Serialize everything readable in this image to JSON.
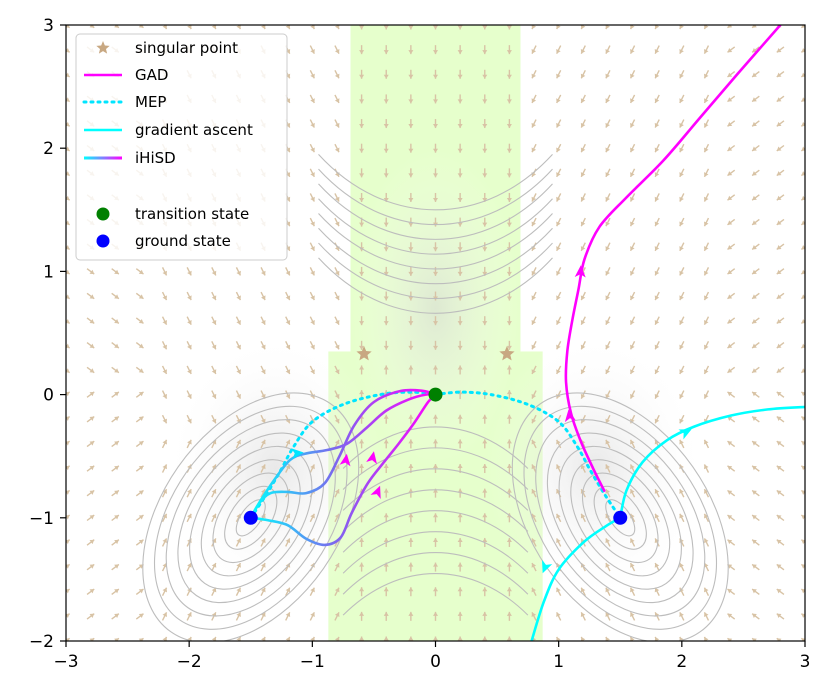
{
  "chart_data": {
    "type": "scatter",
    "xlim": [
      -3,
      3
    ],
    "ylim": [
      -2,
      3
    ],
    "x_ticks": [
      "−3",
      "−2",
      "−1",
      "0",
      "1",
      "2",
      "3"
    ],
    "y_ticks": [
      "−2",
      "−1",
      "0",
      "1",
      "2",
      "3"
    ],
    "grid": false,
    "legend_position": "top-left",
    "legend": [
      {
        "key": "singular",
        "label": "singular point",
        "marker": "star",
        "color": "#c8a882"
      },
      {
        "key": "gad",
        "label": "GAD",
        "marker": "line",
        "color": "#ff00ff"
      },
      {
        "key": "mep",
        "label": "MEP",
        "marker": "dotted-line",
        "color": "#00e5ff"
      },
      {
        "key": "ascent",
        "label": "gradient ascent",
        "marker": "line",
        "color": "#00ffff"
      },
      {
        "key": "ihisd",
        "label": "iHiSD",
        "marker": "gradient-line",
        "color": "#ff00ff"
      },
      {
        "key": "ts",
        "label": "transition state",
        "marker": "dot",
        "color": "#008000"
      },
      {
        "key": "gs",
        "label": "ground state",
        "marker": "dot",
        "color": "#0000ff"
      }
    ],
    "singular_points": [
      [
        -0.58,
        0.33
      ],
      [
        0.58,
        0.33
      ]
    ],
    "transition_state": [
      0,
      0
    ],
    "ground_states": [
      [
        -1.5,
        -1
      ],
      [
        1.5,
        -1
      ]
    ],
    "shaded_bands": [
      {
        "x0": -0.69,
        "x1": 0.69,
        "y0": 0.35,
        "y1": 3,
        "color": "#e6ffcc"
      },
      {
        "x0": -0.87,
        "x1": 0.87,
        "y0": -2,
        "y1": 0.35,
        "color": "#e6ffcc"
      }
    ],
    "series": [
      {
        "key": "mep_left",
        "style": "mep",
        "color": "#00e5ff",
        "points": [
          [
            -1.5,
            -1
          ],
          [
            -1.38,
            -0.82
          ],
          [
            -1.26,
            -0.62
          ],
          [
            -1.15,
            -0.42
          ],
          [
            -1.0,
            -0.22
          ],
          [
            -0.75,
            -0.08
          ],
          [
            -0.45,
            0.0
          ],
          [
            -0.2,
            0.02
          ],
          [
            0,
            0
          ]
        ]
      },
      {
        "key": "mep_right",
        "style": "mep",
        "color": "#00e5ff",
        "points": [
          [
            0,
            0
          ],
          [
            0.2,
            0.02
          ],
          [
            0.45,
            0.0
          ],
          [
            0.75,
            -0.08
          ],
          [
            1.0,
            -0.22
          ],
          [
            1.15,
            -0.42
          ],
          [
            1.26,
            -0.62
          ],
          [
            1.38,
            -0.82
          ],
          [
            1.5,
            -1
          ]
        ]
      },
      {
        "key": "gad_right",
        "style": "line",
        "color": "#ff00ff",
        "points": [
          [
            1.37,
            -0.78
          ],
          [
            1.28,
            -0.6
          ],
          [
            1.18,
            -0.38
          ],
          [
            1.1,
            -0.15
          ],
          [
            1.06,
            0.1
          ],
          [
            1.07,
            0.35
          ],
          [
            1.11,
            0.6
          ],
          [
            1.16,
            0.85
          ],
          [
            1.21,
            1.1
          ],
          [
            1.33,
            1.36
          ],
          [
            1.55,
            1.6
          ],
          [
            1.85,
            1.9
          ],
          [
            2.15,
            2.25
          ],
          [
            2.45,
            2.6
          ],
          [
            2.8,
            3.0
          ]
        ]
      },
      {
        "key": "ascent_right_upper",
        "style": "line",
        "color": "#00ffff",
        "points": [
          [
            1.5,
            -1
          ],
          [
            1.55,
            -0.78
          ],
          [
            1.68,
            -0.55
          ],
          [
            1.88,
            -0.37
          ],
          [
            2.1,
            -0.26
          ],
          [
            2.4,
            -0.17
          ],
          [
            2.7,
            -0.12
          ],
          [
            3.0,
            -0.1
          ]
        ]
      },
      {
        "key": "ascent_right_lower",
        "style": "line",
        "color": "#00ffff",
        "points": [
          [
            1.5,
            -1
          ],
          [
            1.38,
            -1.07
          ],
          [
            1.2,
            -1.2
          ],
          [
            1.0,
            -1.42
          ],
          [
            0.88,
            -1.68
          ],
          [
            0.78,
            -2.0
          ]
        ]
      },
      {
        "key": "ihisd_upper",
        "style": "gradient",
        "color_start": "#00ffff",
        "color_end": "#ff00ff",
        "points": [
          [
            -1.5,
            -1
          ],
          [
            -1.43,
            -0.88
          ],
          [
            -1.34,
            -0.8
          ],
          [
            -1.2,
            -0.79
          ],
          [
            -1.05,
            -0.8
          ],
          [
            -0.9,
            -0.72
          ],
          [
            -0.78,
            -0.5
          ],
          [
            -0.66,
            -0.25
          ],
          [
            -0.5,
            -0.06
          ],
          [
            -0.28,
            0.03
          ],
          [
            -0.1,
            0.03
          ],
          [
            0,
            0
          ]
        ]
      },
      {
        "key": "ihisd_middle",
        "style": "gradient",
        "color_start": "#00ffff",
        "color_end": "#ff00ff",
        "points": [
          [
            -1.5,
            -1
          ],
          [
            -1.42,
            -0.86
          ],
          [
            -1.3,
            -0.68
          ],
          [
            -1.18,
            -0.53
          ],
          [
            -1.06,
            -0.48
          ],
          [
            -0.88,
            -0.45
          ],
          [
            -0.72,
            -0.4
          ],
          [
            -0.56,
            -0.27
          ],
          [
            -0.4,
            -0.13
          ],
          [
            -0.22,
            -0.04
          ],
          [
            -0.08,
            0.0
          ],
          [
            0,
            0
          ]
        ]
      },
      {
        "key": "ihisd_lower",
        "style": "gradient",
        "color_start": "#00ffff",
        "color_end": "#ff00ff",
        "points": [
          [
            -1.5,
            -1
          ],
          [
            -1.36,
            -1.02
          ],
          [
            -1.2,
            -1.06
          ],
          [
            -1.05,
            -1.17
          ],
          [
            -0.9,
            -1.22
          ],
          [
            -0.77,
            -1.16
          ],
          [
            -0.68,
            -0.96
          ],
          [
            -0.55,
            -0.72
          ],
          [
            -0.42,
            -0.55
          ],
          [
            -0.3,
            -0.4
          ],
          [
            -0.18,
            -0.24
          ],
          [
            -0.06,
            -0.06
          ],
          [
            0,
            0
          ]
        ]
      }
    ],
    "arrows": [
      {
        "x": 1.18,
        "y": 1.05,
        "dir": [
          0.05,
          1
        ],
        "color": "#ff00ff"
      },
      {
        "x": 1.08,
        "y": -0.12,
        "dir": [
          -0.15,
          1
        ],
        "color": "#ff00ff"
      },
      {
        "x": -0.5,
        "y": -0.46,
        "dir": [
          0.2,
          1
        ],
        "color": "#ff00ff"
      },
      {
        "x": -0.72,
        "y": -0.48,
        "dir": [
          0.15,
          1
        ],
        "color": "#ff00ff"
      },
      {
        "x": -1.07,
        "y": -0.47,
        "dir": [
          1,
          0.1
        ],
        "color": "#00e5ff"
      },
      {
        "x": -0.45,
        "y": -0.74,
        "dir": [
          0.4,
          1
        ],
        "color": "#ff00ff"
      },
      {
        "x": 2.08,
        "y": -0.28,
        "dir": [
          1,
          0.5
        ],
        "color": "#00ffff"
      },
      {
        "x": 0.87,
        "y": -1.45,
        "dir": [
          -0.4,
          -1
        ],
        "color": "#00ffff"
      }
    ]
  }
}
